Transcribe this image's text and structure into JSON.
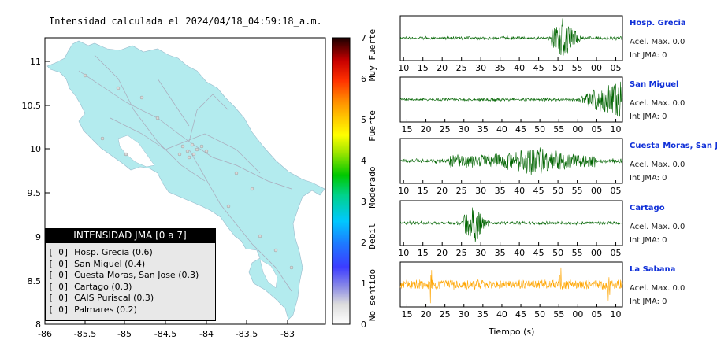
{
  "map": {
    "title": "Intensidad calculada el 2024/04/18_04:59:18_a.m.",
    "x_ticks": [
      "-86",
      "-85.5",
      "-85",
      "-84.5",
      "-84",
      "-83.5",
      "-83"
    ],
    "y_ticks": [
      "11",
      "10.5",
      "10",
      "9.5",
      "9",
      "8.5",
      "8"
    ],
    "x_range": [
      -86,
      -82.7
    ],
    "y_range": [
      8,
      11.3
    ],
    "land_color": "#b3ebee",
    "colorbar_ticks": [
      "7",
      "6",
      "5",
      "4",
      "3",
      "2",
      "1",
      "0"
    ],
    "colorbar_labels": [
      "Muy Fuerte",
      "Fuerte",
      "Moderado",
      "Debil",
      "No sentido"
    ]
  },
  "legend": {
    "title": "INTENSIDAD JMA [0 a 7]",
    "items": [
      {
        "pre": "[ 0]",
        "text": "Hosp. Grecia (0.6)"
      },
      {
        "pre": "[ 0]",
        "text": "San Miguel (0.4)"
      },
      {
        "pre": "[ 0]",
        "text": "Cuesta Moras, San Jose (0.3)"
      },
      {
        "pre": "[ 0]",
        "text": "Cartago (0.3)"
      },
      {
        "pre": "[ 0]",
        "text": "CAIS Puriscal (0.3)"
      },
      {
        "pre": "[ 0]",
        "text": "Palmares (0.2)"
      }
    ]
  },
  "stations": [
    {
      "name": "Hosp. Grecia",
      "acel": "Acel. Max. 0.0",
      "intj": "Int JMA: 0",
      "color": "#006400",
      "ticks": [
        "10",
        "15",
        "20",
        "25",
        "30",
        "35",
        "40",
        "45",
        "50",
        "55",
        "00",
        "05"
      ]
    },
    {
      "name": "San Miguel",
      "acel": "Acel. Max. 0.0",
      "intj": "Int JMA: 0",
      "color": "#006400",
      "ticks": [
        "15",
        "20",
        "25",
        "30",
        "35",
        "40",
        "45",
        "50",
        "55",
        "00",
        "05",
        "10"
      ]
    },
    {
      "name": "Cuesta Moras, San Jose",
      "acel": "Acel. Max. 0.0",
      "intj": "Int JMA: 0",
      "color": "#006400",
      "ticks": [
        "10",
        "15",
        "20",
        "25",
        "30",
        "35",
        "40",
        "45",
        "50",
        "55",
        "00",
        "05"
      ]
    },
    {
      "name": "Cartago",
      "acel": "Acel. Max. 0.0",
      "intj": "Int JMA: 0",
      "color": "#006400",
      "ticks": [
        "10",
        "15",
        "20",
        "25",
        "30",
        "35",
        "40",
        "45",
        "50",
        "55",
        "00",
        "05"
      ]
    },
    {
      "name": "La Sabana",
      "acel": "Acel. Max. 0.0",
      "intj": "Int JMA: 0",
      "color": "#ffa500",
      "ticks": [
        "15",
        "20",
        "25",
        "30",
        "35",
        "40",
        "45",
        "50",
        "55",
        "00",
        "05",
        "10"
      ]
    }
  ],
  "chart_data": {
    "type": "line",
    "xlabel": "Tiempo (s)",
    "series": [
      {
        "name": "Hosp. Grecia",
        "event_tick": "50",
        "amplitude": "strong burst near 50-55"
      },
      {
        "name": "San Miguel",
        "event_tick": "00",
        "amplitude": "growing signal after 00"
      },
      {
        "name": "Cuesta Moras, San Jose",
        "event_tick": "30",
        "amplitude": "continuous signal 30-55"
      },
      {
        "name": "Cartago",
        "event_tick": "30",
        "amplitude": "burst near 30"
      },
      {
        "name": "La Sabana",
        "event_tick": "20",
        "amplitude": "noise with spikes"
      }
    ]
  }
}
